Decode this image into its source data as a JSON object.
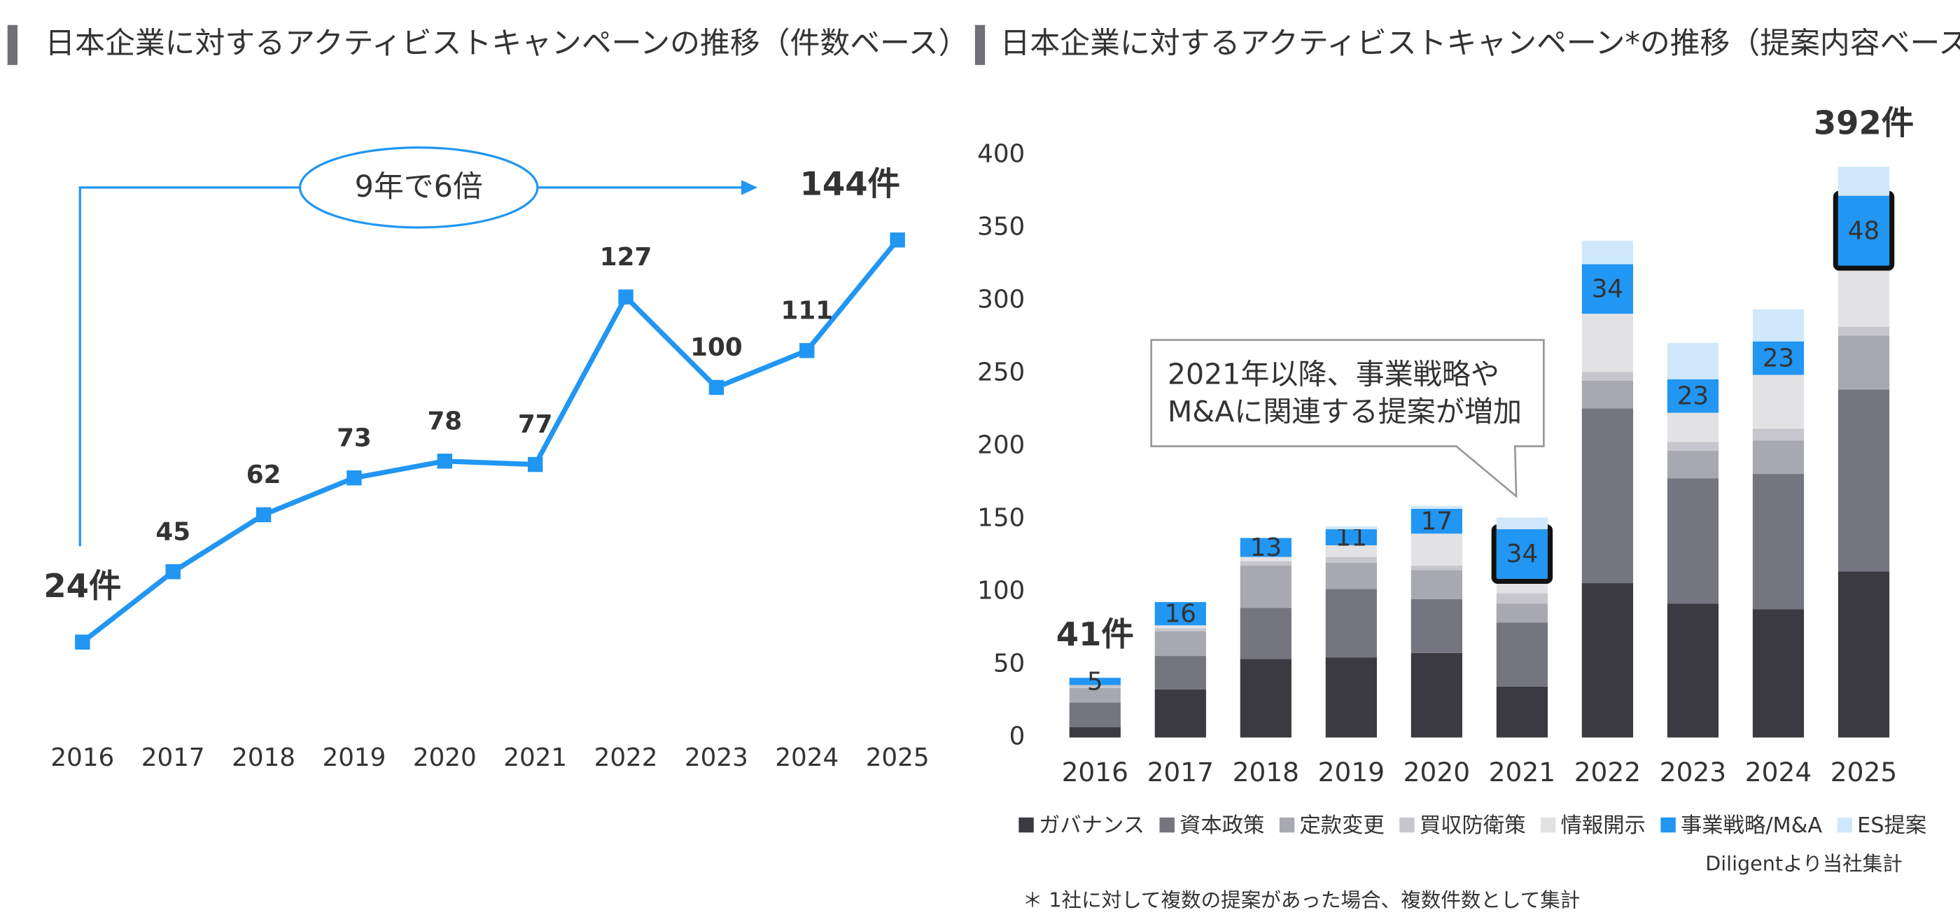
{
  "chart_data": [
    {
      "type": "line",
      "title": "日本企業に対するアクティビストキャンペーンの推移（件数ベース）",
      "annotation": "9年で6倍",
      "categories": [
        "2016",
        "2017",
        "2018",
        "2019",
        "2020",
        "2021",
        "2022",
        "2023",
        "2024",
        "2025"
      ],
      "values": [
        24,
        45,
        62,
        73,
        78,
        77,
        127,
        100,
        111,
        144
      ],
      "value_labels": [
        "24件",
        "45",
        "62",
        "73",
        "78",
        "77",
        "127",
        "100",
        "111",
        "144件"
      ],
      "color": "#2196f3"
    },
    {
      "type": "stacked_bar",
      "title": "日本企業に対するアクティビストキャンペーン*の推移（提案内容ベース）",
      "callout": [
        "2021年以降、事業戦略や",
        "M&Aに関連する提案が増加"
      ],
      "source": "Diligentより当社集計",
      "footnote": "＊ 1社に対して複数の提案があった場合、複数件数として集計",
      "categories": [
        "2016",
        "2017",
        "2018",
        "2019",
        "2020",
        "2021",
        "2022",
        "2023",
        "2024",
        "2025"
      ],
      "total_labels": [
        "41件",
        null,
        null,
        null,
        null,
        null,
        null,
        null,
        null,
        "392件"
      ],
      "highlight_categories": [
        "2021",
        "2025"
      ],
      "ylim": [
        0,
        400
      ],
      "yticks": [
        0,
        50,
        100,
        150,
        200,
        250,
        300,
        350,
        400
      ],
      "series": [
        {
          "name": "ガバナンス",
          "color": "#3a3a40",
          "values": [
            7,
            33,
            54,
            55,
            58,
            35,
            106,
            92,
            88,
            114
          ]
        },
        {
          "name": "資本政策",
          "color": "#75757f",
          "values": [
            17,
            23,
            35,
            47,
            37,
            44,
            120,
            86,
            93,
            125
          ]
        },
        {
          "name": "定款変更",
          "color": "#a8a8b0",
          "values": [
            10,
            17,
            29,
            18,
            20,
            13,
            19,
            19,
            23,
            37
          ]
        },
        {
          "name": "買収防衛策",
          "color": "#c6c6cc",
          "values": [
            2,
            2,
            3,
            4,
            3,
            7,
            6,
            6,
            8,
            6
          ]
        },
        {
          "name": "情報開示",
          "color": "#e2e2e4",
          "values": [
            0,
            2,
            3,
            8,
            22,
            10,
            40,
            20,
            37,
            42
          ]
        },
        {
          "name": "事業戦略/M&A",
          "color": "#2196f3",
          "values": [
            5,
            16,
            13,
            11,
            17,
            34,
            34,
            23,
            23,
            48
          ],
          "show_values": true
        },
        {
          "name": "ES提案",
          "color": "#cfe8fb",
          "values": [
            0,
            0,
            0,
            2,
            2,
            8,
            16,
            25,
            22,
            20
          ]
        }
      ]
    }
  ]
}
